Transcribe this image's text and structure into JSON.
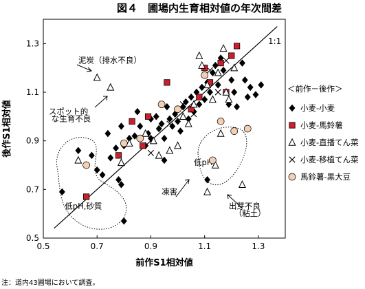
{
  "chart_data": {
    "type": "scatter",
    "title": "図４　圃場内生育相対値の年次間差",
    "xlabel": "前作S1相対値",
    "ylabel": "後作S1相対値",
    "xlim": [
      0.5,
      1.4
    ],
    "ylim": [
      0.5,
      1.4
    ],
    "x_ticks": [
      "0.5",
      "0.7",
      "0.9",
      "1.1",
      "1.3"
    ],
    "y_ticks": [
      "0.5",
      "0.7",
      "0.9",
      "1.1",
      "1.3"
    ],
    "reference_line_label": "1:1",
    "legend_title": "＜前作－後作＞",
    "legend_position": "right",
    "series": [
      {
        "name": "小麦-小麦",
        "marker": "diamond",
        "color": "#000000",
        "points": [
          [
            0.57,
            0.69
          ],
          [
            0.63,
            0.86
          ],
          [
            0.68,
            0.84
          ],
          [
            0.7,
            0.78
          ],
          [
            0.72,
            0.76
          ],
          [
            0.75,
            0.83
          ],
          [
            0.78,
            0.74
          ],
          [
            0.79,
            0.72
          ],
          [
            0.8,
            0.57
          ],
          [
            0.77,
            0.87
          ],
          [
            0.79,
            0.96
          ],
          [
            0.8,
            0.88
          ],
          [
            0.82,
            0.91
          ],
          [
            0.84,
            0.92
          ],
          [
            0.86,
            0.96
          ],
          [
            0.88,
            0.88
          ],
          [
            0.89,
            0.93
          ],
          [
            0.9,
            0.99
          ],
          [
            0.92,
            1.0
          ],
          [
            0.93,
            0.95
          ],
          [
            0.94,
            0.97
          ],
          [
            0.95,
            0.91
          ],
          [
            0.96,
            1.04
          ],
          [
            0.97,
            0.99
          ],
          [
            0.98,
            0.96
          ],
          [
            0.99,
            1.01
          ],
          [
            1.0,
            0.98
          ],
          [
            1.01,
            0.94
          ],
          [
            1.02,
            1.04
          ],
          [
            1.03,
            1.06
          ],
          [
            1.04,
            0.99
          ],
          [
            1.05,
            1.08
          ],
          [
            1.06,
            1.02
          ],
          [
            1.07,
            1.1
          ],
          [
            1.08,
            1.05
          ],
          [
            1.09,
            1.12
          ],
          [
            1.1,
            1.07
          ],
          [
            1.11,
            1.14
          ],
          [
            1.12,
            1.1
          ],
          [
            1.13,
            1.18
          ],
          [
            1.14,
            1.21
          ],
          [
            1.15,
            1.13
          ],
          [
            1.16,
            1.24
          ],
          [
            1.17,
            1.19
          ],
          [
            1.19,
            1.05
          ],
          [
            1.2,
            1.15
          ],
          [
            1.21,
            1.1
          ],
          [
            1.22,
            1.04
          ],
          [
            1.24,
            1.22
          ],
          [
            1.25,
            1.15
          ],
          [
            1.26,
            1.08
          ],
          [
            1.27,
            1.12
          ],
          [
            1.29,
            1.09
          ],
          [
            1.31,
            1.13
          ],
          [
            1.11,
            0.74
          ],
          [
            0.95,
            0.82
          ],
          [
            0.9,
            0.91
          ],
          [
            0.85,
            1.02
          ],
          [
            0.74,
            0.93
          ]
        ]
      },
      {
        "name": "小麦-馬鈴薯",
        "marker": "square",
        "color": "#cc1f2e",
        "points": [
          [
            0.66,
            0.67
          ],
          [
            0.78,
            0.84
          ],
          [
            0.83,
            0.98
          ],
          [
            0.87,
            0.88
          ],
          [
            0.89,
            1.0
          ],
          [
            0.96,
            1.14
          ],
          [
            1.05,
            1.03
          ],
          [
            1.08,
            1.08
          ],
          [
            1.1,
            1.2
          ],
          [
            1.12,
            1.14
          ],
          [
            1.16,
            1.22
          ],
          [
            1.2,
            1.25
          ],
          [
            1.22,
            1.29
          ],
          [
            1.18,
            1.1
          ]
        ]
      },
      {
        "name": "小麦-直播てん菜",
        "marker": "triangle",
        "color": "#000000",
        "points": [
          [
            0.7,
            1.16
          ],
          [
            0.75,
            1.12
          ],
          [
            0.63,
            0.82
          ],
          [
            0.79,
            0.81
          ],
          [
            0.82,
            0.89
          ],
          [
            0.88,
            0.93
          ],
          [
            0.91,
            0.9
          ],
          [
            0.93,
            0.84
          ],
          [
            0.97,
            0.86
          ],
          [
            1.0,
            0.88
          ],
          [
            1.02,
            1.0
          ],
          [
            1.04,
            0.97
          ],
          [
            1.06,
            1.05
          ],
          [
            1.08,
            1.25
          ],
          [
            1.09,
            1.21
          ],
          [
            1.11,
            1.13
          ],
          [
            1.13,
            1.07
          ],
          [
            1.15,
            1.18
          ],
          [
            1.17,
            1.28
          ],
          [
            1.18,
            1.1
          ],
          [
            1.19,
            1.07
          ],
          [
            1.21,
            1.2
          ],
          [
            1.24,
            0.72
          ],
          [
            1.11,
            0.69
          ],
          [
            1.14,
            0.8
          ],
          [
            1.16,
            0.93
          ]
        ]
      },
      {
        "name": "小麦-移植てん菜",
        "marker": "x",
        "color": "#000000",
        "points": [
          [
            0.9,
            0.85
          ],
          [
            0.97,
            0.97
          ],
          [
            1.02,
            1.05
          ],
          [
            1.06,
            1.01
          ],
          [
            1.12,
            1.19
          ],
          [
            1.15,
            1.1
          ],
          [
            1.18,
            1.23
          ]
        ]
      },
      {
        "name": "馬鈴薯-黒大豆",
        "marker": "circle",
        "color": "#f5cfb4",
        "points": [
          [
            0.66,
            0.8
          ],
          [
            0.8,
            0.89
          ],
          [
            0.86,
            0.91
          ],
          [
            0.94,
            1.05
          ],
          [
            1.0,
            1.03
          ],
          [
            1.1,
            1.17
          ],
          [
            1.13,
            0.82
          ],
          [
            1.16,
            0.98
          ],
          [
            1.21,
            0.94
          ],
          [
            1.26,
            0.95
          ]
        ]
      }
    ],
    "annotations": [
      {
        "text": "泥炭（排水不良）",
        "x": 0.63,
        "y": 1.22
      },
      {
        "text": "スポット的",
        "x": 0.52,
        "y": 1.01
      },
      {
        "text": "な生育不良",
        "x": 0.53,
        "y": 0.98
      },
      {
        "text": "低pH,砂質",
        "x": 0.58,
        "y": 0.62
      },
      {
        "text": "凍害",
        "x": 0.94,
        "y": 0.68
      },
      {
        "text": "低pH",
        "x": 1.06,
        "y": 0.8
      },
      {
        "text": "出芽不良",
        "x": 1.19,
        "y": 0.62
      },
      {
        "text": "（粘土）",
        "x": 1.21,
        "y": 0.59
      }
    ]
  },
  "footnote": "注：道内43圃場において調査。"
}
